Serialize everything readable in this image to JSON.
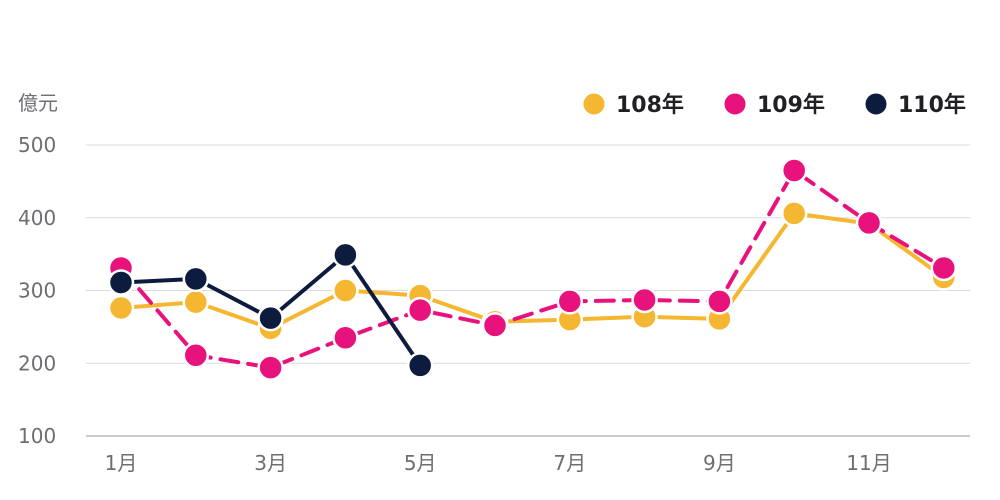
{
  "chart_data": {
    "type": "line",
    "ylabel": "億元",
    "ylim": [
      100,
      500
    ],
    "yticks": [
      100,
      200,
      300,
      400,
      500
    ],
    "x": [
      1,
      2,
      3,
      4,
      5,
      6,
      7,
      8,
      9,
      10,
      11,
      12
    ],
    "xtick_labels": [
      {
        "x": 1,
        "label": "1月"
      },
      {
        "x": 3,
        "label": "3月"
      },
      {
        "x": 5,
        "label": "5月"
      },
      {
        "x": 7,
        "label": "7月"
      },
      {
        "x": 9,
        "label": "9月"
      },
      {
        "x": 11,
        "label": "11月"
      }
    ],
    "grid": true,
    "legend_position": "top-right",
    "series": [
      {
        "name": "108年",
        "color": "#f5b731",
        "dash": "solid",
        "values": [
          276,
          284,
          248,
          300,
          293,
          257,
          260,
          264,
          261,
          406,
          392,
          318
        ]
      },
      {
        "name": "109年",
        "color": "#e8127c",
        "dash": "dashed",
        "values": [
          331,
          211,
          194,
          235,
          273,
          252,
          285,
          287,
          285,
          465,
          393,
          331
        ]
      },
      {
        "name": "110年",
        "color": "#0d1b3e",
        "dash": "solid",
        "values": [
          311,
          316,
          262,
          349,
          197,
          null,
          null,
          null,
          null,
          null,
          null,
          null
        ]
      }
    ]
  }
}
